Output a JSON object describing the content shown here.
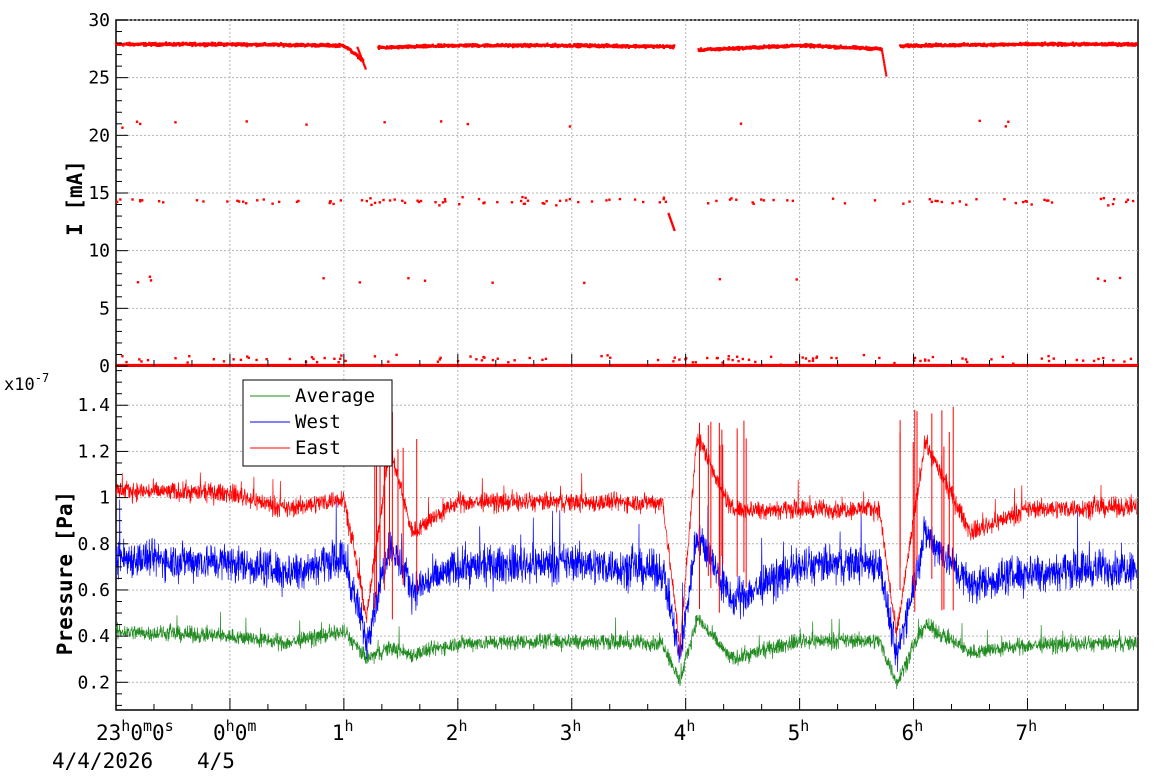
{
  "chart_data": [
    {
      "type": "scatter",
      "ylabel": "I [mA]",
      "ylim": [
        0,
        30
      ],
      "yticks": [
        "0",
        "5",
        "10",
        "15",
        "20",
        "25",
        "30"
      ],
      "grid": true,
      "color": "#ff0000",
      "note": "Beam current, mostly ~27.9 mA with gaps near 1h12m, 3h55m-4h08m and 5h45m-5h52m; scattered points near 14 mA and 0 mA",
      "series": [
        {
          "name": "",
          "x_hours": [
            -1.0,
            0.0,
            1.0,
            1.17,
            1.2,
            1.3,
            2.0,
            3.0,
            3.87,
            4.1,
            5.0,
            5.72,
            5.78,
            5.88,
            6.0,
            7.0,
            7.95
          ],
          "values": [
            27.9,
            27.9,
            27.8,
            26.5,
            null,
            27.6,
            27.8,
            27.8,
            27.7,
            27.4,
            27.8,
            27.5,
            null,
            27.7,
            27.8,
            27.9,
            27.9
          ]
        }
      ],
      "scatter_clusters": [
        {
          "y": 14.3,
          "label": "~14 mA points"
        },
        {
          "y": 0.6,
          "label": "~0 mA points"
        },
        {
          "y": 21.0,
          "label": "~21 mA points"
        },
        {
          "y": 7.5,
          "label": "~7 mA points"
        }
      ]
    },
    {
      "type": "line",
      "ylabel": "Pressure [Pa]",
      "exponent_label": "x10",
      "exponent_power": "-7",
      "ylim": [
        0.08,
        1.57
      ],
      "yticks": [
        "0.2",
        "0.4",
        "0.6",
        "0.8",
        "1",
        "1.2",
        "1.4"
      ],
      "grid": true,
      "legend_position": "top-left",
      "series": [
        {
          "name": "Average",
          "color": "#228b22",
          "x_hours": [
            -1.0,
            0.0,
            0.5,
            1.0,
            1.2,
            1.4,
            1.6,
            2.0,
            3.0,
            3.8,
            3.95,
            4.1,
            4.4,
            5.0,
            5.7,
            5.85,
            6.1,
            6.5,
            7.0,
            7.95
          ],
          "values": [
            0.42,
            0.4,
            0.37,
            0.42,
            0.3,
            0.35,
            0.32,
            0.37,
            0.38,
            0.37,
            0.2,
            0.48,
            0.3,
            0.38,
            0.38,
            0.2,
            0.45,
            0.33,
            0.36,
            0.37
          ]
        },
        {
          "name": "West",
          "color": "#0000ff",
          "x_hours": [
            -1.0,
            0.0,
            0.5,
            1.0,
            1.2,
            1.4,
            1.6,
            2.0,
            3.0,
            3.8,
            3.95,
            4.1,
            4.4,
            5.0,
            5.7,
            5.85,
            6.1,
            6.5,
            7.0,
            7.95
          ],
          "values": [
            0.74,
            0.72,
            0.68,
            0.74,
            0.38,
            0.8,
            0.6,
            0.7,
            0.72,
            0.68,
            0.3,
            0.85,
            0.55,
            0.7,
            0.72,
            0.3,
            0.85,
            0.62,
            0.68,
            0.7
          ]
        },
        {
          "name": "East",
          "color": "#ff0000",
          "x_hours": [
            -1.0,
            0.0,
            0.5,
            1.0,
            1.2,
            1.4,
            1.6,
            2.0,
            3.0,
            3.8,
            3.95,
            4.1,
            4.4,
            5.0,
            5.7,
            5.85,
            6.1,
            6.5,
            7.0,
            7.95
          ],
          "values": [
            1.03,
            1.02,
            0.95,
            1.0,
            0.48,
            1.22,
            0.85,
            0.98,
            0.98,
            0.98,
            0.35,
            1.27,
            0.95,
            0.95,
            0.95,
            0.4,
            1.24,
            0.85,
            0.95,
            0.96
          ]
        }
      ]
    }
  ],
  "time_axis": {
    "first_label": "23",
    "first_label_sup1": "h",
    "first_label_mid": "0",
    "first_label_sup2": "m",
    "first_label_end": "0",
    "first_label_sup3": "s",
    "second_label": "0",
    "second_label_sup1": "h",
    "second_label_mid": "0",
    "second_label_sup2": "m",
    "hour_labels": [
      "1",
      "2",
      "3",
      "4",
      "5",
      "6",
      "7"
    ],
    "hour_sup": "h",
    "date_left": "4/4/2026",
    "date_right": "4/5"
  },
  "colors": {
    "average": "#228b22",
    "west": "#0000ff",
    "east": "#ff0000",
    "grid": "#b4b4b4",
    "frame": "#000000"
  }
}
